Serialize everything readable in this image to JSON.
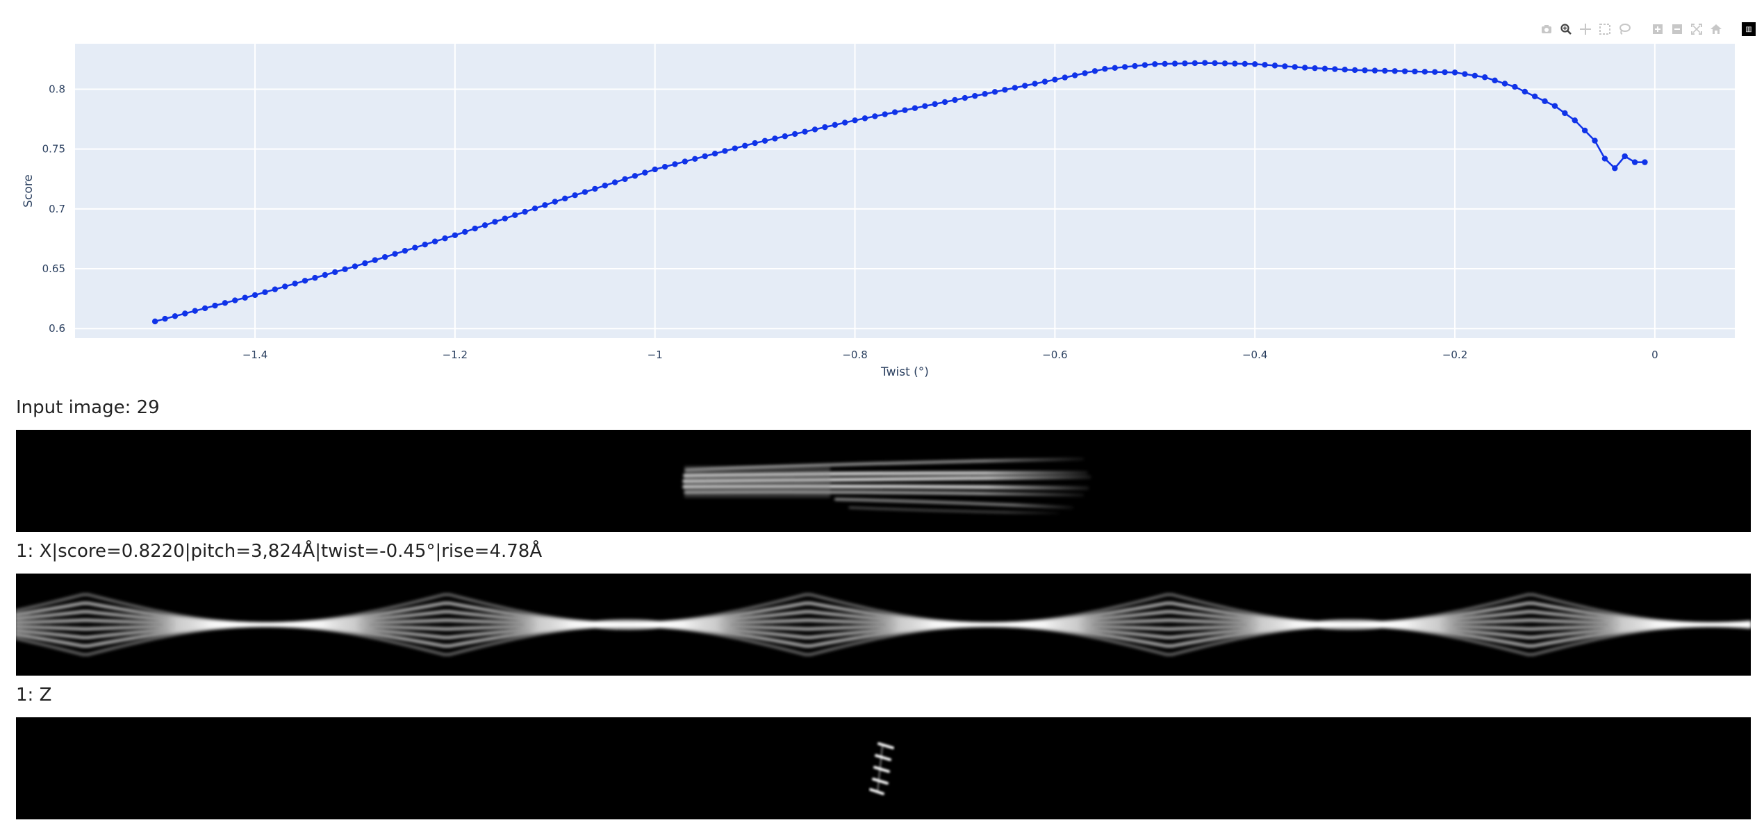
{
  "chart_data": {
    "type": "line",
    "xlabel": "Twist (°)",
    "ylabel": "Score",
    "xlim": [
      -1.58,
      0.08
    ],
    "ylim": [
      0.592,
      0.838
    ],
    "x_ticks": [
      -1.4,
      -1.2,
      -1,
      -0.8,
      -0.6,
      -0.4,
      -0.2,
      0
    ],
    "x_tick_labels": [
      "−1.4",
      "−1.2",
      "−1",
      "−0.8",
      "−0.6",
      "−0.4",
      "−0.2",
      "0"
    ],
    "y_ticks": [
      0.6,
      0.65,
      0.7,
      0.75,
      0.8
    ],
    "y_tick_labels": [
      "0.6",
      "0.65",
      "0.7",
      "0.75",
      "0.8"
    ],
    "grid": true,
    "series": [
      {
        "color": "#1033e8",
        "x_start": -1.5,
        "x_step": 0.01,
        "x_end": -0.01,
        "anchor_x": [
          -1.5,
          -1.4,
          -1.3,
          -1.2,
          -1.1,
          -1.0,
          -0.9,
          -0.8,
          -0.7,
          -0.6,
          -0.55,
          -0.5,
          -0.45,
          -0.4,
          -0.35,
          -0.3,
          -0.25,
          -0.2,
          -0.17,
          -0.14,
          -0.12,
          -0.1,
          -0.08,
          -0.06,
          -0.05,
          -0.04,
          -0.03,
          -0.02,
          -0.01
        ],
        "anchor_y": [
          0.606,
          0.628,
          0.652,
          0.678,
          0.706,
          0.733,
          0.755,
          0.774,
          0.791,
          0.808,
          0.817,
          0.821,
          0.822,
          0.821,
          0.818,
          0.816,
          0.815,
          0.814,
          0.81,
          0.802,
          0.794,
          0.786,
          0.774,
          0.757,
          0.742,
          0.734,
          0.744,
          0.739,
          0.739
        ]
      }
    ]
  },
  "modebar": {
    "icons": [
      "camera-icon",
      "zoom-icon",
      "pan-icon",
      "box-select-icon",
      "lasso-icon",
      "zoom-in-icon",
      "zoom-out-icon",
      "autoscale-icon",
      "reset-axes-icon"
    ],
    "logo": "plotly-logo"
  },
  "captions": {
    "input": "Input image: 29",
    "x_result": "1: X|score=0.8220|pitch=3,824Å|twist=-0.45°|rise=4.78Å",
    "z_result": "1: Z"
  }
}
